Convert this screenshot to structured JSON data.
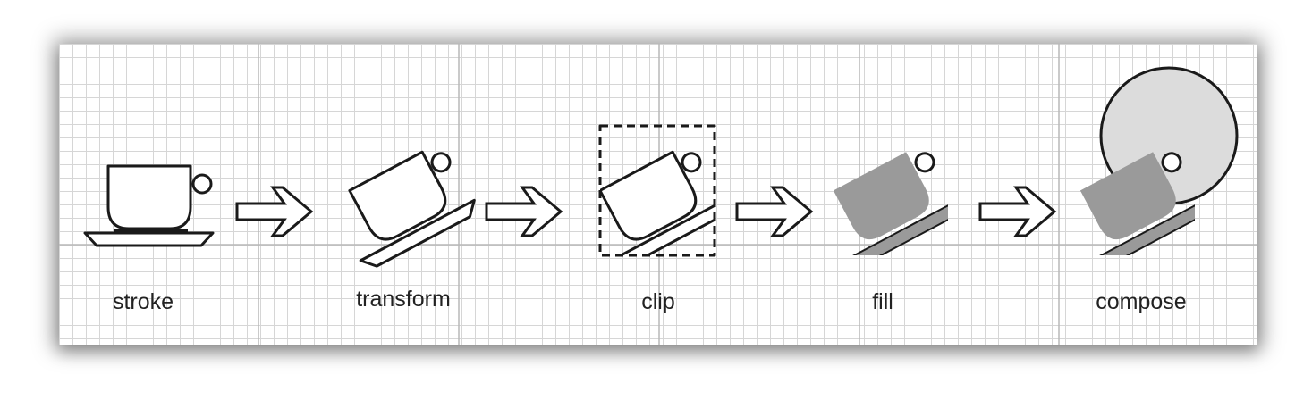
{
  "steps": [
    {
      "label": "stroke"
    },
    {
      "label": "transform"
    },
    {
      "label": "clip"
    },
    {
      "label": "fill"
    },
    {
      "label": "compose"
    }
  ],
  "colors": {
    "ink": "#1a1a1a",
    "fill_gray": "#9a9a9a",
    "compose_circle": "#dcdcdc",
    "grid": "#d6d6d6",
    "divider": "#b8b8b8"
  }
}
